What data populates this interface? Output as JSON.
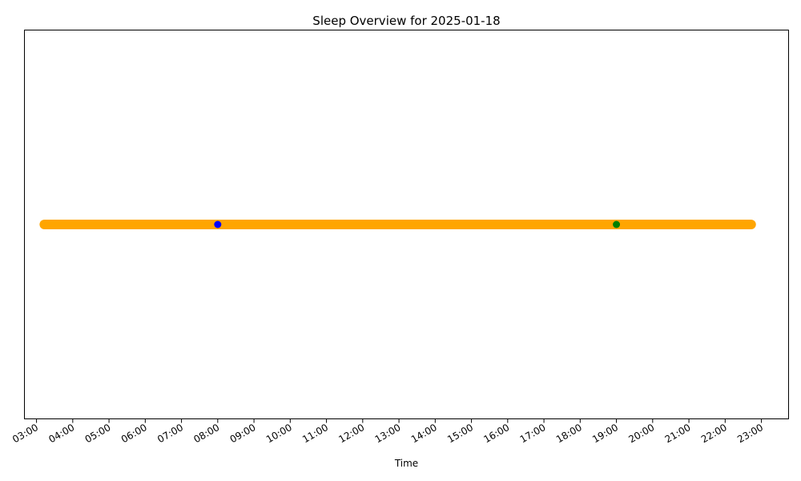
{
  "chart_data": {
    "type": "scatter",
    "title": "Sleep Overview for 2025-01-18",
    "xlabel": "Time",
    "ylabel": "",
    "xlim": [
      "02:40",
      "23:45"
    ],
    "xticks": [
      "03:00",
      "04:00",
      "05:00",
      "06:00",
      "07:00",
      "08:00",
      "09:00",
      "10:00",
      "11:00",
      "12:00",
      "13:00",
      "14:00",
      "15:00",
      "16:00",
      "17:00",
      "18:00",
      "19:00",
      "20:00",
      "21:00",
      "22:00",
      "23:00"
    ],
    "y_ticks_visible": false,
    "grid": false,
    "legend": "none",
    "series": [
      {
        "color": "#ffa500",
        "x_range": [
          "03:13",
          "22:43"
        ],
        "y": 0,
        "style": "dense-markers"
      },
      {
        "color": "#0000ff",
        "x": [
          "08:00"
        ],
        "y": [
          0
        ]
      },
      {
        "color": "#008000",
        "x": [
          "19:00"
        ],
        "y": [
          0
        ]
      }
    ]
  }
}
